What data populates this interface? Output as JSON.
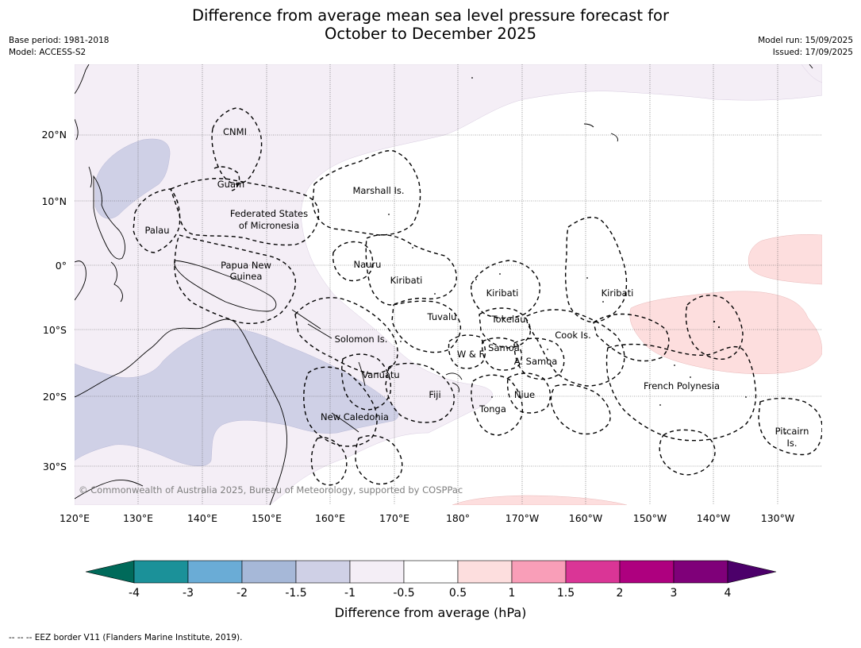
{
  "title_line1": "Difference from average mean sea level pressure forecast for",
  "title_line2": "October to December 2025",
  "meta_left": [
    "Base period: 1981-2018",
    "Model: ACCESS-S2"
  ],
  "meta_right": [
    "Model run: 15/09/2025",
    "Issued: 17/09/2025"
  ],
  "copyright": "© Commonwealth of Australia 2025, Bureau of Meteorology, supported by COSPPac",
  "lat_labels": [
    "20°N",
    "10°N",
    "0°",
    "10°S",
    "20°S",
    "30°S"
  ],
  "lon_labels": [
    "120°E",
    "130°E",
    "140°E",
    "150°E",
    "160°E",
    "170°E",
    "180°",
    "170°W",
    "160°W",
    "150°W",
    "140°W",
    "130°W"
  ],
  "regions": {
    "cnmi": "CNMI",
    "guam": "Guam",
    "fsm_1": "Federated States",
    "fsm_2": "of Micronesia",
    "palau": "Palau",
    "marshall": "Marshall Is.",
    "png_1": "Papua New",
    "png_2": "Guinea",
    "nauru": "Nauru",
    "kiribati_w": "Kiribati",
    "kiribati_c": "Kiribati",
    "kiribati_e": "Kiribati",
    "tuvalu": "Tuvalu",
    "tokelau": "Tokelau",
    "solomon": "Solomon Is.",
    "samoa": "Samoa",
    "wf": "W & F",
    "amsamoa": "A. Samoa",
    "cook": "Cook Is.",
    "vanuatu": "Vanuatu",
    "fiji": "Fiji",
    "niue": "Niue",
    "tonga": "Tonga",
    "frpoly": "French Polynesia",
    "newcal": "New Caledonia",
    "pitcairn_1": "Pitcairn",
    "pitcairn_2": "Is."
  },
  "colorbar": {
    "ticks": [
      "-4",
      "-3",
      "-2",
      "-1.5",
      "-1",
      "-0.5",
      "0.5",
      "1",
      "1.5",
      "2",
      "3",
      "4"
    ],
    "colors": [
      "#1b9199",
      "#6aacd6",
      "#a6b8d8",
      "#cfd0e6",
      "#f4eef6",
      "#ffffff",
      "#fddede",
      "#f99eb8",
      "#da3596",
      "#ae007f",
      "#7f0079"
    ],
    "under_color": "#006a5a",
    "over_color": "#4c006a",
    "label": "Difference from average (hPa)"
  },
  "footnote": "--  --  -- EEZ border V11 (Flanders Marine Institute, 2019)."
}
